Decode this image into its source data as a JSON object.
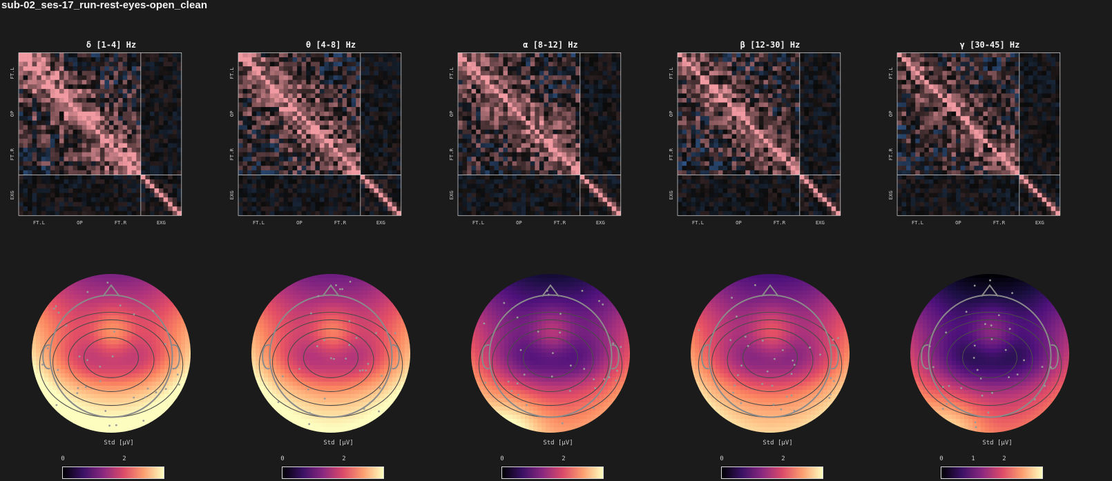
{
  "page": {
    "title": "sub-02_ses-17_run-rest-eyes-open_clean"
  },
  "group_labels": {
    "y": [
      "FT.L",
      "OP",
      "FT.R",
      "EXG"
    ],
    "x": [
      "FT.L",
      "OP",
      "FT.R",
      "EXG"
    ]
  },
  "colorbar_label": "Std [μV]",
  "colors": {
    "background": "#1b1b1b",
    "positive_corr": "#f29aa2",
    "negative_corr": "#4f93f0",
    "neutral": "#0b0b0b",
    "colormap_low": "#000004",
    "colormap_mid": "#b73779",
    "colormap_high": "#fcfdbf",
    "head_outline": "#8a8a8a"
  },
  "chart_data": [
    {
      "type": "heatmap",
      "title": "δ [1-4] Hz",
      "colorbar_ticks": [
        "0",
        "2"
      ],
      "topo_mean_level": 0.72
    },
    {
      "type": "heatmap",
      "title": "θ [4-8] Hz",
      "colorbar_ticks": [
        "0",
        "2"
      ],
      "topo_mean_level": 0.68
    },
    {
      "type": "heatmap",
      "title": "α [8-12] Hz",
      "colorbar_ticks": [
        "0",
        "2"
      ],
      "topo_mean_level": 0.45
    },
    {
      "type": "heatmap",
      "title": "β [12-30] Hz",
      "colorbar_ticks": [
        "0",
        "2"
      ],
      "topo_mean_level": 0.58
    },
    {
      "type": "heatmap",
      "title": "γ [30-45] Hz",
      "colorbar_ticks": [
        "0",
        "1",
        "2"
      ],
      "topo_mean_level": 0.35
    }
  ]
}
